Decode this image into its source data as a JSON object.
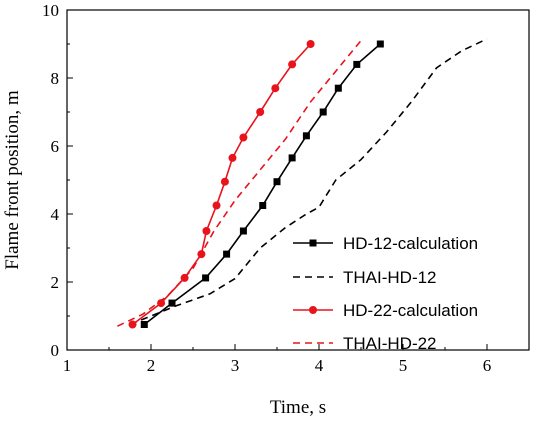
{
  "chart_data": {
    "type": "line",
    "title": "",
    "xlabel": "Time, s",
    "ylabel": "Flame front position, m",
    "xlim": [
      1,
      6.5
    ],
    "ylim": [
      0,
      10
    ],
    "x_ticks": [
      1,
      2,
      3,
      4,
      5,
      6
    ],
    "y_ticks": [
      0,
      2,
      4,
      6,
      8,
      10
    ],
    "x_tick_labels": [
      "1",
      "2",
      "3",
      "4",
      "5",
      "6"
    ],
    "y_tick_labels": [
      "0",
      "2",
      "4",
      "6",
      "8",
      "10"
    ],
    "grid": false,
    "legend_position": "bottom-right",
    "series": [
      {
        "name": "HD-12-calculation",
        "color": "#000000",
        "style": "solid",
        "marker": "square",
        "x": [
          1.92,
          2.25,
          2.65,
          2.9,
          3.1,
          3.33,
          3.5,
          3.68,
          3.85,
          4.05,
          4.23,
          4.45,
          4.73
        ],
        "y": [
          0.75,
          1.38,
          2.12,
          2.82,
          3.5,
          4.25,
          4.95,
          5.65,
          6.3,
          7.0,
          7.7,
          8.4,
          9.0
        ]
      },
      {
        "name": "THAI-HD-12",
        "color": "#000000",
        "style": "dashed",
        "marker": "none",
        "x": [
          1.75,
          2.0,
          2.3,
          2.7,
          3.0,
          3.3,
          3.6,
          3.85,
          4.0,
          4.2,
          4.5,
          4.8,
          5.1,
          5.4,
          5.7,
          6.0
        ],
        "y": [
          0.75,
          1.0,
          1.3,
          1.65,
          2.1,
          3.0,
          3.6,
          4.0,
          4.2,
          5.0,
          5.6,
          6.4,
          7.3,
          8.3,
          8.8,
          9.15
        ]
      },
      {
        "name": "HD-22-calculation",
        "color": "#e8131b",
        "style": "solid",
        "marker": "circle",
        "x": [
          1.78,
          2.12,
          2.4,
          2.6,
          2.66,
          2.78,
          2.88,
          2.97,
          3.1,
          3.3,
          3.48,
          3.68,
          3.9
        ],
        "y": [
          0.75,
          1.38,
          2.12,
          2.82,
          3.5,
          4.25,
          4.95,
          5.65,
          6.25,
          7.0,
          7.7,
          8.4,
          9.0
        ]
      },
      {
        "name": "THAI-HD-22",
        "color": "#e8131b",
        "style": "dashed",
        "marker": "none",
        "x": [
          1.6,
          1.9,
          2.2,
          2.5,
          2.75,
          3.0,
          3.3,
          3.6,
          3.9,
          4.2,
          4.5
        ],
        "y": [
          0.7,
          1.05,
          1.6,
          2.4,
          3.5,
          4.4,
          5.3,
          6.2,
          7.3,
          8.2,
          9.1
        ]
      }
    ]
  }
}
